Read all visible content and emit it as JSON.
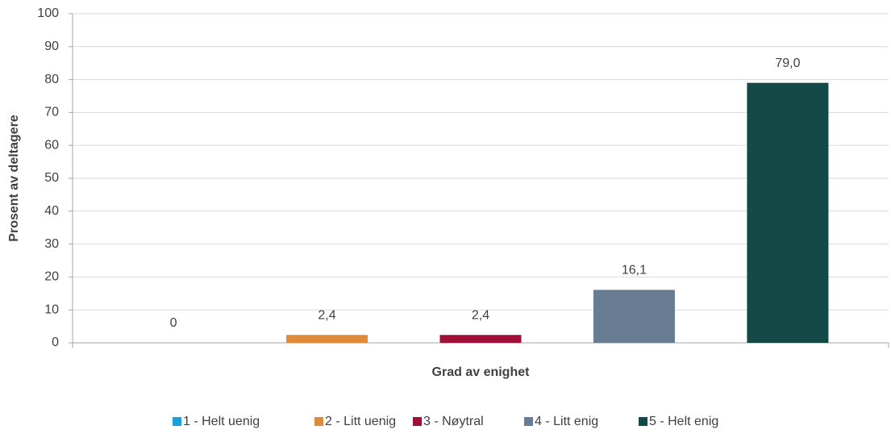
{
  "chart_data": {
    "type": "bar",
    "x_label": "Grad av enighet",
    "y_label": "Prosent av deltagere",
    "categories": [
      null
    ],
    "series": [
      {
        "name": "1 - Helt uenig",
        "color": "#16a2dc",
        "values": [
          0
        ],
        "value_labels": [
          "0"
        ]
      },
      {
        "name": "2 - Litt uenig",
        "color": "#e08a3c",
        "values": [
          2.4
        ],
        "value_labels": [
          "2,4"
        ]
      },
      {
        "name": "3 - Nøytral",
        "color": "#9e1038",
        "values": [
          2.4
        ],
        "value_labels": [
          "2,4"
        ]
      },
      {
        "name": "4 - Litt enig",
        "color": "#687d93",
        "values": [
          16.1
        ],
        "value_labels": [
          "16,1"
        ]
      },
      {
        "name": "5 - Helt enig",
        "color": "#134a47",
        "values": [
          79.0
        ],
        "value_labels": [
          "79,0"
        ]
      }
    ],
    "ylim": [
      0,
      100
    ],
    "yticks": [
      0,
      10,
      20,
      30,
      40,
      50,
      60,
      70,
      80,
      90,
      100
    ],
    "grid": true,
    "legend": "bottom"
  }
}
